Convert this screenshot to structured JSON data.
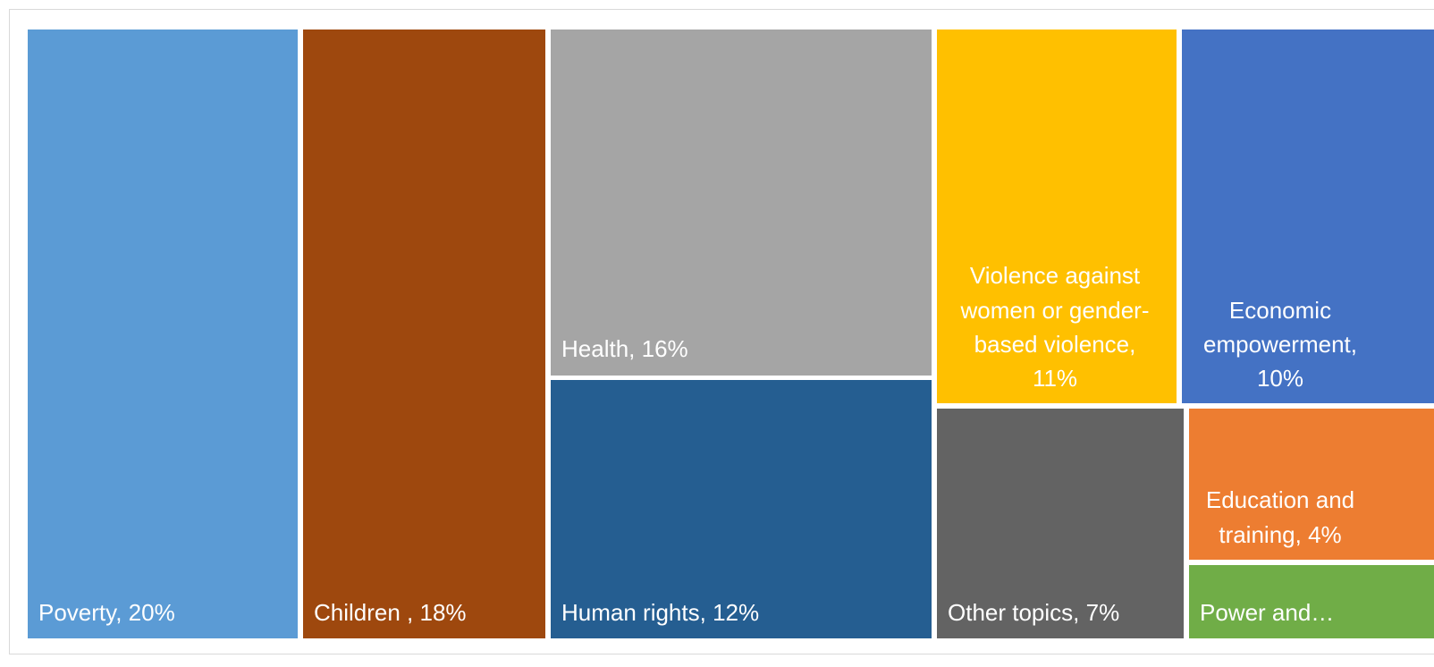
{
  "chart_data": {
    "type": "treemap",
    "title": "",
    "items": [
      {
        "label": "Poverty, 20%",
        "category": "Poverty",
        "value": 20,
        "color": "#5B9BD5"
      },
      {
        "label": "Children , 18%",
        "category": "Children",
        "value": 18,
        "color": "#9E480E"
      },
      {
        "label": "Health, 16%",
        "category": "Health",
        "value": 16,
        "color": "#A5A5A5"
      },
      {
        "label": "Human rights, 12%",
        "category": "Human rights",
        "value": 12,
        "color": "#255E91"
      },
      {
        "label": "Violence against women or gender-based violence, 11%",
        "category": "Violence against women or gender-based violence",
        "value": 11,
        "color": "#FFC000"
      },
      {
        "label": "Economic empowerment, 10%",
        "category": "Economic empowerment",
        "value": 10,
        "color": "#4472C4"
      },
      {
        "label": "Other topics, 7%",
        "category": "Other topics",
        "value": 7,
        "color": "#636363"
      },
      {
        "label": "Education and training, 4%",
        "category": "Education and training",
        "value": 4,
        "color": "#ED7D31"
      },
      {
        "label": "Power and…",
        "category": "Power and…",
        "value": 2,
        "color": "#70AD47"
      }
    ]
  }
}
